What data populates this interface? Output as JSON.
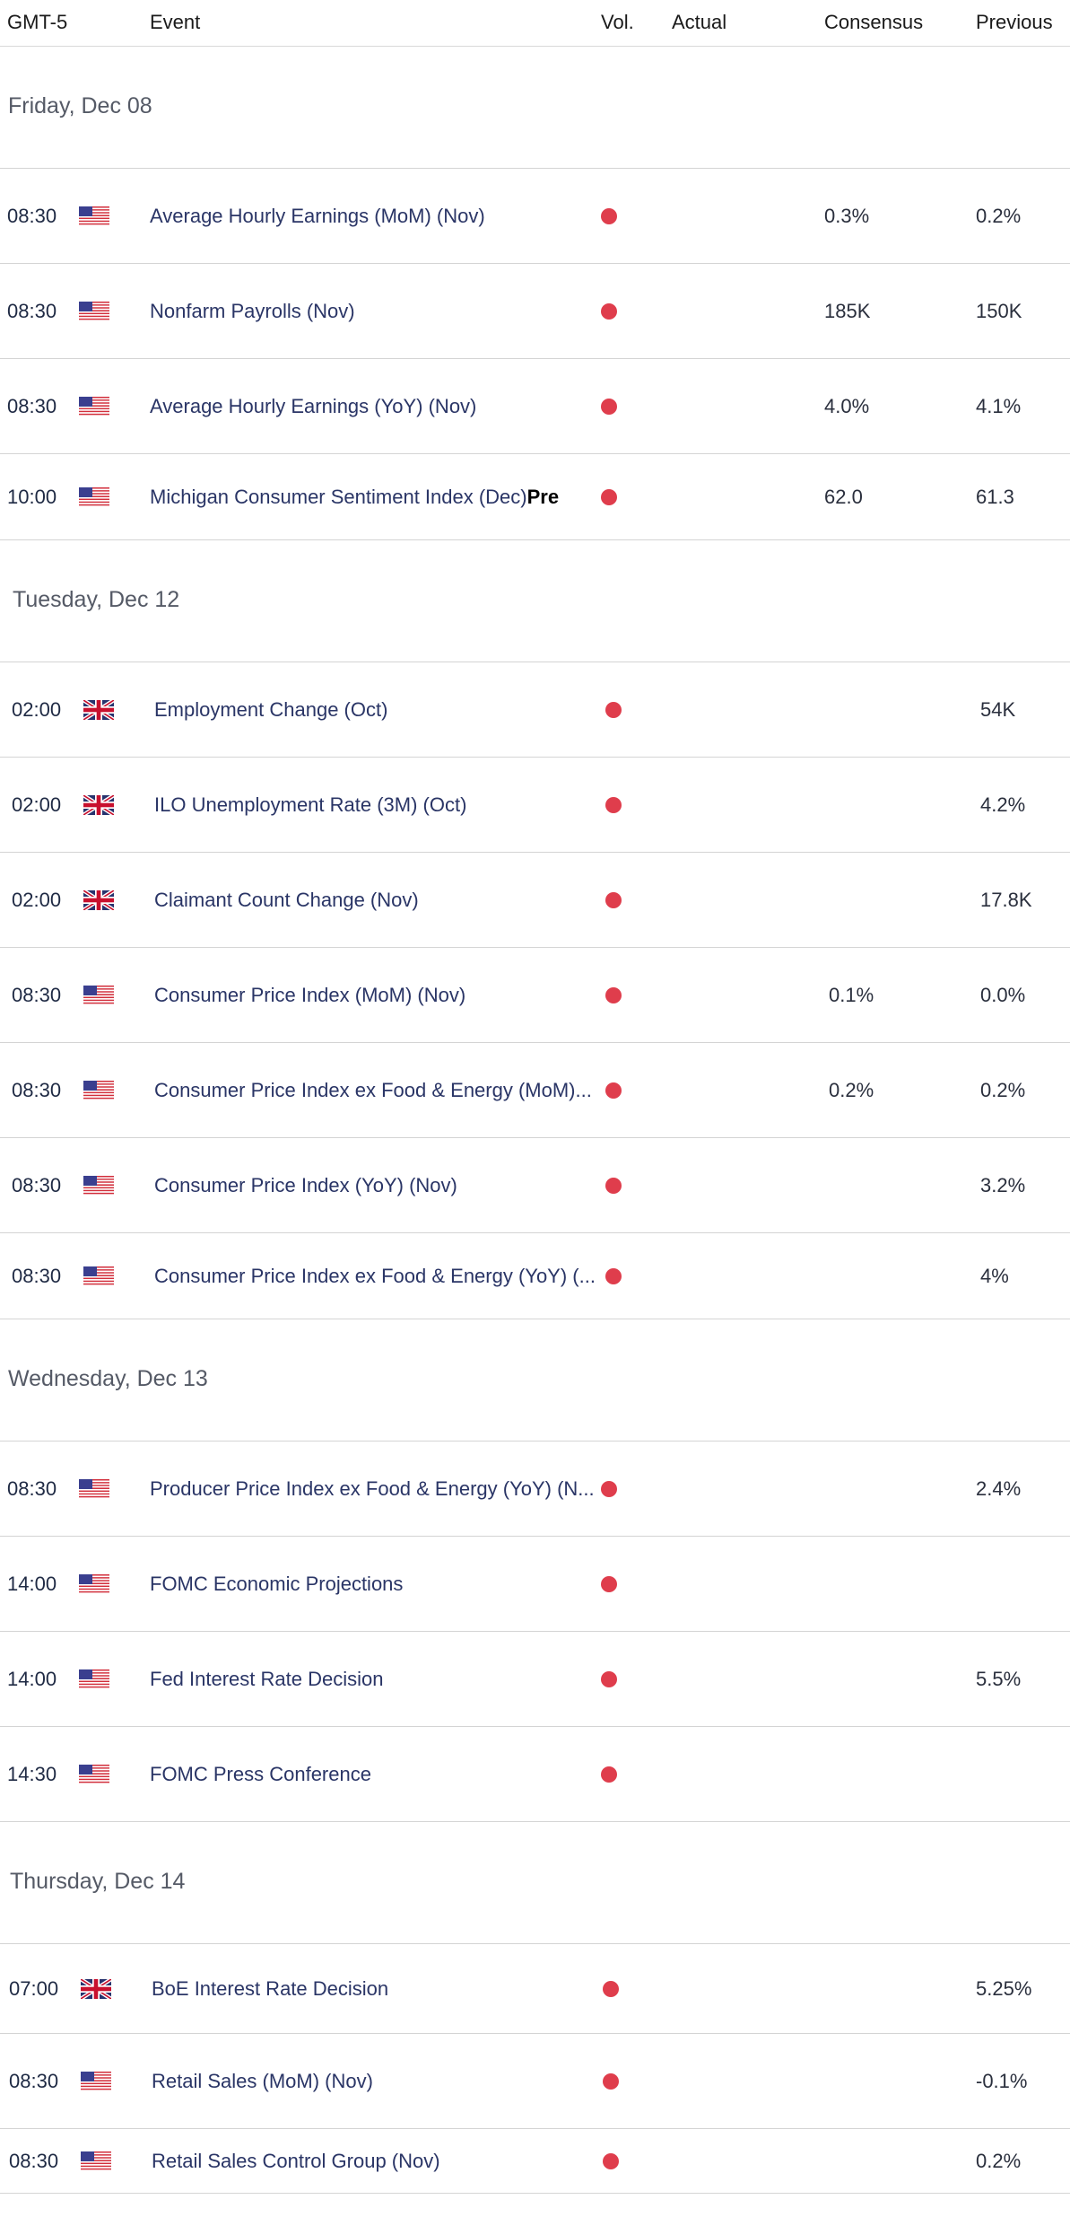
{
  "header": {
    "timezone": "GMT-5",
    "event": "Event",
    "vol": "Vol.",
    "actual": "Actual",
    "consensus": "Consensus",
    "previous": "Previous"
  },
  "colors": {
    "high_volatility": "#df3d4c",
    "text_dark": "#1f2a44"
  },
  "days": [
    {
      "date": "Friday, Dec 08",
      "events": [
        {
          "time": "08:30",
          "country": "us-flag-icon",
          "name": "Average Hourly Earnings (MoM) (Nov)",
          "actual": "",
          "consensus": "0.3%",
          "previous": "0.2%"
        },
        {
          "time": "08:30",
          "country": "us-flag-icon",
          "name": "Nonfarm Payrolls (Nov)",
          "actual": "",
          "consensus": "185K",
          "previous": "150K"
        },
        {
          "time": "08:30",
          "country": "us-flag-icon",
          "name": "Average Hourly Earnings (YoY) (Nov)",
          "actual": "",
          "consensus": "4.0%",
          "previous": "4.1%"
        },
        {
          "time": "10:00",
          "country": "us-flag-icon",
          "name": "Michigan Consumer Sentiment Index (Dec)",
          "tag": "Pre",
          "actual": "",
          "consensus": "62.0",
          "previous": "61.3"
        }
      ]
    },
    {
      "date": "Tuesday, Dec 12",
      "events": [
        {
          "time": "02:00",
          "country": "uk-flag-icon",
          "name": "Employment Change (Oct)",
          "actual": "",
          "consensus": "",
          "previous": "54K"
        },
        {
          "time": "02:00",
          "country": "uk-flag-icon",
          "name": "ILO Unemployment Rate (3M) (Oct)",
          "actual": "",
          "consensus": "",
          "previous": "4.2%"
        },
        {
          "time": "02:00",
          "country": "uk-flag-icon",
          "name": "Claimant Count Change (Nov)",
          "actual": "",
          "consensus": "",
          "previous": "17.8K"
        },
        {
          "time": "08:30",
          "country": "us-flag-icon",
          "name": "Consumer Price Index (MoM) (Nov)",
          "actual": "",
          "consensus": "0.1%",
          "previous": "0.0%"
        },
        {
          "time": "08:30",
          "country": "us-flag-icon",
          "name": "Consumer Price Index ex Food & Energy (MoM)...",
          "actual": "",
          "consensus": "0.2%",
          "previous": "0.2%"
        },
        {
          "time": "08:30",
          "country": "us-flag-icon",
          "name": "Consumer Price Index (YoY) (Nov)",
          "actual": "",
          "consensus": "",
          "previous": "3.2%"
        },
        {
          "time": "08:30",
          "country": "us-flag-icon",
          "name": "Consumer Price Index ex Food & Energy (YoY) (...",
          "actual": "",
          "consensus": "",
          "previous": "4%"
        }
      ]
    },
    {
      "date": "Wednesday, Dec 13",
      "events": [
        {
          "time": "08:30",
          "country": "us-flag-icon",
          "name": "Producer Price Index ex Food & Energy (YoY) (N...",
          "actual": "",
          "consensus": "",
          "previous": "2.4%"
        },
        {
          "time": "14:00",
          "country": "us-flag-icon",
          "name": "FOMC Economic Projections",
          "actual": "",
          "consensus": "",
          "previous": ""
        },
        {
          "time": "14:00",
          "country": "us-flag-icon",
          "name": "Fed Interest Rate Decision",
          "actual": "",
          "consensus": "",
          "previous": "5.5%"
        },
        {
          "time": "14:30",
          "country": "us-flag-icon",
          "name": "FOMC Press Conference",
          "actual": "",
          "consensus": "",
          "previous": ""
        }
      ]
    },
    {
      "date": "Thursday, Dec 14",
      "events": [
        {
          "time": "07:00",
          "country": "uk-flag-icon",
          "name": "BoE Interest Rate Decision",
          "actual": "",
          "consensus": "",
          "previous": "5.25%"
        },
        {
          "time": "08:30",
          "country": "us-flag-icon",
          "name": "Retail Sales (MoM) (Nov)",
          "actual": "",
          "consensus": "",
          "previous": "-0.1%"
        },
        {
          "time": "08:30",
          "country": "us-flag-icon",
          "name": "Retail Sales Control Group (Nov)",
          "actual": "",
          "consensus": "",
          "previous": "0.2%"
        }
      ]
    }
  ]
}
